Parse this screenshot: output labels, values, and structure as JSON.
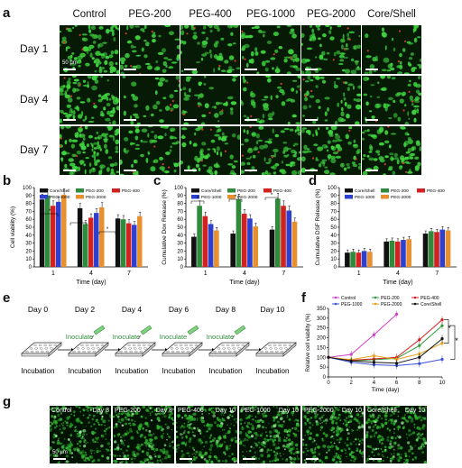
{
  "panel_labels": {
    "a": "a",
    "b": "b",
    "c": "c",
    "d": "d",
    "e": "e",
    "f": "f",
    "g": "g"
  },
  "panel_a": {
    "columns": [
      "Control",
      "PEG-200",
      "PEG-400",
      "PEG-1000",
      "PEG-2000",
      "Core/Shell"
    ],
    "rows": [
      "Day 1",
      "Day 4",
      "Day 7"
    ],
    "scale_bar": "50 μm",
    "density": [
      [
        0.75,
        0.45,
        0.5,
        0.45,
        0.55,
        0.4
      ],
      [
        0.8,
        0.3,
        0.35,
        0.4,
        0.45,
        0.5
      ],
      [
        0.9,
        0.55,
        0.55,
        0.65,
        0.6,
        0.7
      ]
    ],
    "colors": {
      "cells": "#3fd33f",
      "dead": "#d23b2c",
      "background": "#061a06"
    }
  },
  "series_colors": {
    "Core/Shell": "#111111",
    "PEG-200": "#2e8b3a",
    "PEG-400": "#d32020",
    "PEG-1000": "#2d3fcf",
    "PEG-2000": "#e8902e"
  },
  "chart_data": [
    {
      "panel": "b",
      "type": "bar",
      "ylabel": "Cell viability (%)",
      "xlabel": "Time (day)",
      "categories": [
        "1",
        "4",
        "7"
      ],
      "ylim": [
        0,
        100
      ],
      "yticks": [
        0,
        10,
        20,
        30,
        40,
        50,
        60,
        70,
        80,
        90,
        100
      ],
      "series": [
        {
          "name": "Core/Shell",
          "values": [
            85,
            74,
            61
          ]
        },
        {
          "name": "PEG-200",
          "values": [
            90,
            54,
            60
          ]
        },
        {
          "name": "PEG-400",
          "values": [
            77,
            62,
            55
          ]
        },
        {
          "name": "PEG-1000",
          "values": [
            82,
            68,
            53
          ]
        },
        {
          "name": "PEG-2000",
          "values": [
            91,
            75,
            64
          ]
        }
      ],
      "legend_order": [
        "Core/Shell",
        "PEG-200",
        "PEG-400",
        "PEG-1000",
        "PEG-2000"
      ]
    },
    {
      "panel": "c",
      "type": "bar",
      "ylabel": "Cumulative Dox Release (%)",
      "xlabel": "Time (day)",
      "categories": [
        "1",
        "4",
        "7"
      ],
      "ylim": [
        0,
        100
      ],
      "yticks": [
        0,
        10,
        20,
        30,
        40,
        50,
        60,
        70,
        80,
        90,
        100
      ],
      "series": [
        {
          "name": "Core/Shell",
          "values": [
            38,
            42,
            47
          ]
        },
        {
          "name": "PEG-200",
          "values": [
            77,
            85,
            86
          ]
        },
        {
          "name": "PEG-400",
          "values": [
            64,
            67,
            77
          ]
        },
        {
          "name": "PEG-1000",
          "values": [
            54,
            61,
            71
          ]
        },
        {
          "name": "PEG-2000",
          "values": [
            46,
            51,
            57
          ]
        }
      ],
      "legend_order": [
        "Core/Shell",
        "PEG-200",
        "PEG-400",
        "PEG-1000",
        "PEG-2000"
      ]
    },
    {
      "panel": "d",
      "type": "bar",
      "ylabel": "Cumulative DSF Release (%)",
      "xlabel": "Time (day)",
      "categories": [
        "1",
        "4",
        "7"
      ],
      "ylim": [
        0,
        100
      ],
      "yticks": [
        0,
        10,
        20,
        30,
        40,
        50,
        60,
        70,
        80,
        90,
        100
      ],
      "series": [
        {
          "name": "Core/Shell",
          "values": [
            18,
            32,
            42
          ]
        },
        {
          "name": "PEG-200",
          "values": [
            19,
            33,
            45
          ]
        },
        {
          "name": "PEG-400",
          "values": [
            18,
            32,
            44
          ]
        },
        {
          "name": "PEG-1000",
          "values": [
            20,
            34,
            47
          ]
        },
        {
          "name": "PEG-2000",
          "values": [
            19,
            35,
            46
          ]
        }
      ],
      "legend_order": [
        "Core/Shell",
        "PEG-200",
        "PEG-400",
        "PEG-1000",
        "PEG-2000"
      ]
    },
    {
      "panel": "f",
      "type": "line",
      "ylabel": "Relative cell viability (%)",
      "xlabel": "Time (day)",
      "x": [
        0,
        2,
        4,
        6,
        8,
        10
      ],
      "xlim": [
        0,
        10
      ],
      "ylim": [
        0,
        350
      ],
      "yticks": [
        0,
        50,
        100,
        150,
        200,
        250,
        300,
        350
      ],
      "series": [
        {
          "name": "Control",
          "x": [
            0,
            2,
            4,
            6
          ],
          "values": [
            100,
            115,
            215,
            320
          ]
        },
        {
          "name": "PEG-200",
          "x": [
            0,
            2,
            4,
            6,
            8,
            10
          ],
          "values": [
            100,
            82,
            88,
            95,
            160,
            262
          ]
        },
        {
          "name": "PEG-400",
          "x": [
            0,
            2,
            4,
            6,
            8,
            10
          ],
          "values": [
            100,
            85,
            92,
            100,
            190,
            292
          ]
        },
        {
          "name": "PEG-1000",
          "x": [
            0,
            2,
            4,
            6,
            8,
            10
          ],
          "values": [
            100,
            75,
            62,
            58,
            68,
            90
          ]
        },
        {
          "name": "PEG-2000",
          "x": [
            0,
            2,
            4,
            6,
            8,
            10
          ],
          "values": [
            100,
            88,
            108,
            90,
            118,
            172
          ]
        },
        {
          "name": "Core/Shell",
          "x": [
            0,
            2,
            4,
            6,
            8,
            10
          ],
          "values": [
            100,
            82,
            75,
            70,
            100,
            195
          ]
        }
      ],
      "legend_order": [
        "Control",
        "PEG-200",
        "PEG-400",
        "PEG-1000",
        "PEG-2000",
        "Core/Shell"
      ],
      "significance": [
        "*",
        "*"
      ]
    }
  ],
  "panel_e": {
    "days": [
      "Day 0",
      "Day 2",
      "Day 4",
      "Day 6",
      "Day 8",
      "Day 10"
    ],
    "inoculate_label": "Inoculate",
    "incubation_label": "Incubation"
  },
  "panel_g": {
    "titles": [
      {
        "name": "Control",
        "day": "Day 8"
      },
      {
        "name": "PEG-200",
        "day": "Day 8"
      },
      {
        "name": "PEG-400",
        "day": "Day 10"
      },
      {
        "name": "PEG-1000",
        "day": "Day 10"
      },
      {
        "name": "PEG-2000",
        "day": "Day 10"
      },
      {
        "name": "Core/Shell",
        "day": "Day 10"
      }
    ],
    "scale_bar": "50 μm"
  },
  "line_colors": {
    "Control": "#d040c8",
    "PEG-200": "#2e9b3a",
    "PEG-400": "#d32020",
    "PEG-1000": "#3a4fd6",
    "PEG-2000": "#e8a020",
    "Core/Shell": "#111111"
  }
}
